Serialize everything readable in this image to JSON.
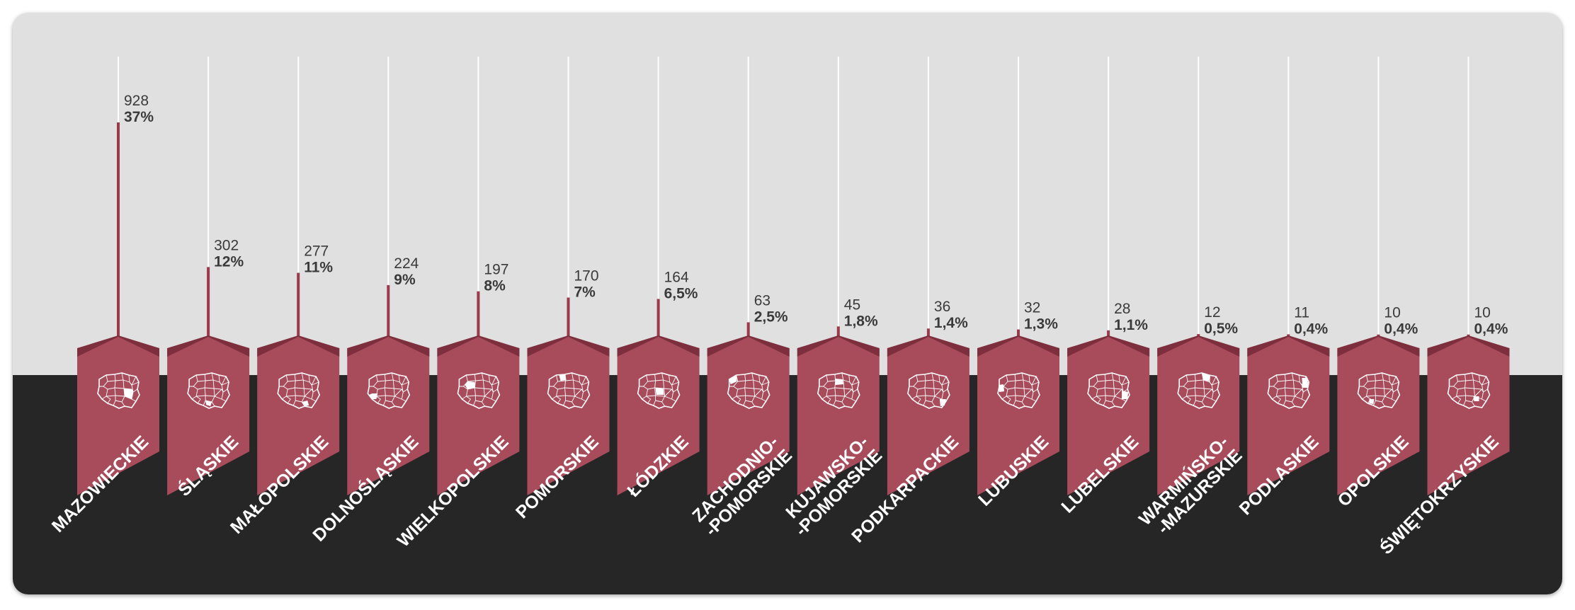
{
  "chart_data": {
    "type": "bar",
    "title": "",
    "xlabel": "",
    "ylabel": "",
    "ylim": [
      0,
      1100
    ],
    "grid": false,
    "legend": "none",
    "categories": [
      {
        "lines": [
          "MAZOWIECKIE"
        ]
      },
      {
        "lines": [
          "ŚLĄSKIE"
        ]
      },
      {
        "lines": [
          "MAŁOPOLSKIE"
        ]
      },
      {
        "lines": [
          "DOLNOŚLĄSKIE"
        ]
      },
      {
        "lines": [
          "WIELKOPOLSKIE"
        ]
      },
      {
        "lines": [
          "POMORSKIE"
        ]
      },
      {
        "lines": [
          "ŁÓDZKIE"
        ]
      },
      {
        "lines": [
          "ZACHODNIO-",
          "-POMORSKIE"
        ]
      },
      {
        "lines": [
          "KUJAWSKO-",
          "-POMORSKIE"
        ]
      },
      {
        "lines": [
          "PODKARPACKIE"
        ]
      },
      {
        "lines": [
          "LUBUSKIE"
        ]
      },
      {
        "lines": [
          "LUBELSKIE"
        ]
      },
      {
        "lines": [
          "WARMIŃSKO-",
          "-MAZURSKIE"
        ]
      },
      {
        "lines": [
          "PODLASKIE"
        ]
      },
      {
        "lines": [
          "OPOLSKIE"
        ]
      },
      {
        "lines": [
          "ŚWIĘTOKRZYSKIE"
        ]
      }
    ],
    "series": [
      {
        "values": [
          928,
          302,
          277,
          224,
          197,
          170,
          164,
          63,
          45,
          36,
          32,
          28,
          12,
          11,
          10,
          10
        ],
        "value_labels": [
          "928",
          "302",
          "277",
          "224",
          "197",
          "170",
          "164",
          "63",
          "45",
          "36",
          "32",
          "28",
          "12",
          "11",
          "10",
          "10"
        ],
        "percent_labels": [
          "37%",
          "12%",
          "11%",
          "9%",
          "8%",
          "7%",
          "6,5%",
          "2,5%",
          "1,8%",
          "1,4%",
          "1,3%",
          "1,1%",
          "0,5%",
          "0,4%",
          "0,4%",
          "0,4%"
        ]
      }
    ],
    "colors": {
      "banner": "#a84c5c",
      "banner_dark": "#7e2f3d",
      "bar": "#9b3a4b",
      "guide": "#ffffff",
      "top_background": "#e0e0e0",
      "bottom_background": "#262626",
      "map": "#ffffff"
    },
    "icons": [
      "poland-map-icon"
    ]
  }
}
